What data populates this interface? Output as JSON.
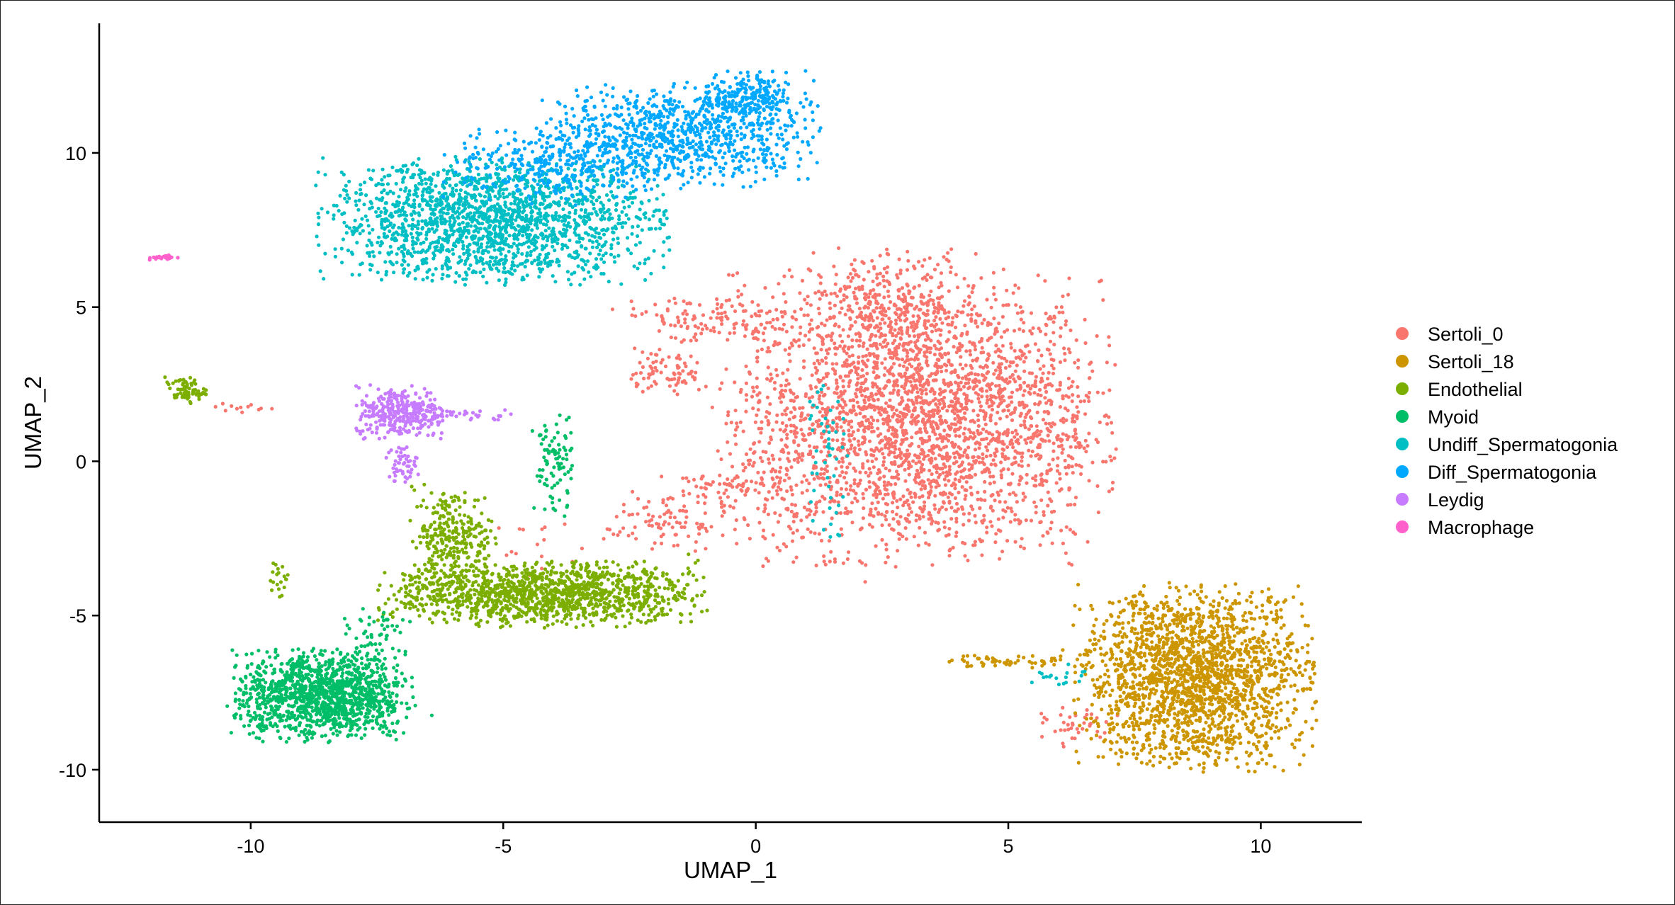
{
  "chart_data": {
    "type": "scatter",
    "title": "",
    "xlabel": "UMAP_1",
    "ylabel": "UMAP_2",
    "xlim": [
      -13.0,
      12.0
    ],
    "ylim": [
      -11.7,
      14.2
    ],
    "x_ticks": [
      -10,
      -5,
      0,
      5,
      10
    ],
    "x_tick_labels": [
      "-10",
      "-5",
      "0",
      "5",
      "10"
    ],
    "y_ticks": [
      -10,
      -5,
      0,
      5,
      10
    ],
    "y_tick_labels": [
      "-10",
      "-5",
      "0",
      "5",
      "10"
    ],
    "grid": false,
    "legend_position": "right",
    "series": [
      {
        "name": "Sertoli_0",
        "color": "#F8766D",
        "clusters": [
          {
            "cx": 3.2,
            "cy": 1.4,
            "sx": 1.8,
            "sy": 2.2,
            "n": 2900
          },
          {
            "cx": 2.6,
            "cy": 5.2,
            "sx": 0.9,
            "sy": 0.8,
            "n": 260
          },
          {
            "cx": -1.0,
            "cy": 4.6,
            "sx": 0.9,
            "sy": 0.4,
            "n": 120
          },
          {
            "cx": -1.7,
            "cy": 2.9,
            "sx": 0.4,
            "sy": 0.4,
            "n": 80
          },
          {
            "cx": -1.8,
            "cy": -2.0,
            "sx": 0.6,
            "sy": 0.5,
            "n": 90
          },
          {
            "cx": -0.6,
            "cy": -0.9,
            "sx": 0.6,
            "sy": 0.3,
            "n": 70
          },
          {
            "cx": 0.4,
            "cy": 0.0,
            "sx": 0.4,
            "sy": 0.2,
            "n": 30
          },
          {
            "cx": 6.4,
            "cy": -8.6,
            "sx": 0.35,
            "sy": 0.3,
            "n": 40
          },
          {
            "cx": -10.2,
            "cy": 1.7,
            "sx": 0.3,
            "sy": 0.1,
            "n": 12
          },
          {
            "cx": -4.3,
            "cy": -2.6,
            "sx": 0.5,
            "sy": 0.5,
            "n": 18
          }
        ]
      },
      {
        "name": "Sertoli_18",
        "color": "#CD9600",
        "clusters": [
          {
            "cx": 8.7,
            "cy": -7.0,
            "sx": 1.1,
            "sy": 1.4,
            "n": 2000
          },
          {
            "cx": 4.9,
            "cy": -6.5,
            "sx": 0.5,
            "sy": 0.1,
            "n": 45
          },
          {
            "cx": 6.0,
            "cy": -6.4,
            "sx": 0.3,
            "sy": 0.2,
            "n": 20
          }
        ]
      },
      {
        "name": "Endothelial",
        "color": "#7CAE00",
        "clusters": [
          {
            "cx": -4.2,
            "cy": -4.3,
            "sx": 1.5,
            "sy": 0.5,
            "n": 1300
          },
          {
            "cx": -6.0,
            "cy": -2.5,
            "sx": 0.4,
            "sy": 0.8,
            "n": 300
          },
          {
            "cx": -11.3,
            "cy": 2.3,
            "sx": 0.2,
            "sy": 0.2,
            "n": 70
          },
          {
            "cx": -9.4,
            "cy": -3.9,
            "sx": 0.1,
            "sy": 0.3,
            "n": 20
          }
        ]
      },
      {
        "name": "Myoid",
        "color": "#00BE67",
        "clusters": [
          {
            "cx": -8.6,
            "cy": -7.6,
            "sx": 0.85,
            "sy": 0.7,
            "n": 1300
          },
          {
            "cx": -4.0,
            "cy": -0.1,
            "sx": 0.2,
            "sy": 0.8,
            "n": 90
          },
          {
            "cx": -7.5,
            "cy": -5.8,
            "sx": 0.3,
            "sy": 0.5,
            "n": 60
          }
        ]
      },
      {
        "name": "Undiff_Spermatogonia",
        "color": "#00BFC4",
        "clusters": [
          {
            "cx": -5.2,
            "cy": 7.8,
            "sx": 1.6,
            "sy": 0.95,
            "n": 1800
          },
          {
            "cx": 1.4,
            "cy": 0.6,
            "sx": 0.2,
            "sy": 1.5,
            "n": 50
          },
          {
            "cx": 6.0,
            "cy": -6.9,
            "sx": 0.3,
            "sy": 0.2,
            "n": 18
          }
        ]
      },
      {
        "name": "Diff_Spermatogonia",
        "color": "#00A9FF",
        "clusters": [
          {
            "cx": -1.5,
            "cy": 10.6,
            "sx": 1.3,
            "sy": 0.8,
            "n": 900
          },
          {
            "cx": -4.0,
            "cy": 9.6,
            "sx": 1.0,
            "sy": 0.6,
            "n": 300
          },
          {
            "cx": -0.2,
            "cy": 11.8,
            "sx": 0.4,
            "sy": 0.4,
            "n": 200
          }
        ]
      },
      {
        "name": "Leydig",
        "color": "#C77CFF",
        "clusters": [
          {
            "cx": -7.0,
            "cy": 1.6,
            "sx": 0.45,
            "sy": 0.4,
            "n": 330
          },
          {
            "cx": -7.0,
            "cy": -0.1,
            "sx": 0.15,
            "sy": 0.3,
            "n": 50
          },
          {
            "cx": -5.6,
            "cy": 1.5,
            "sx": 0.4,
            "sy": 0.1,
            "n": 25
          }
        ]
      },
      {
        "name": "Macrophage",
        "color": "#FF61CC",
        "clusters": [
          {
            "cx": -11.7,
            "cy": 6.6,
            "sx": 0.15,
            "sy": 0.04,
            "n": 25
          }
        ]
      }
    ]
  }
}
